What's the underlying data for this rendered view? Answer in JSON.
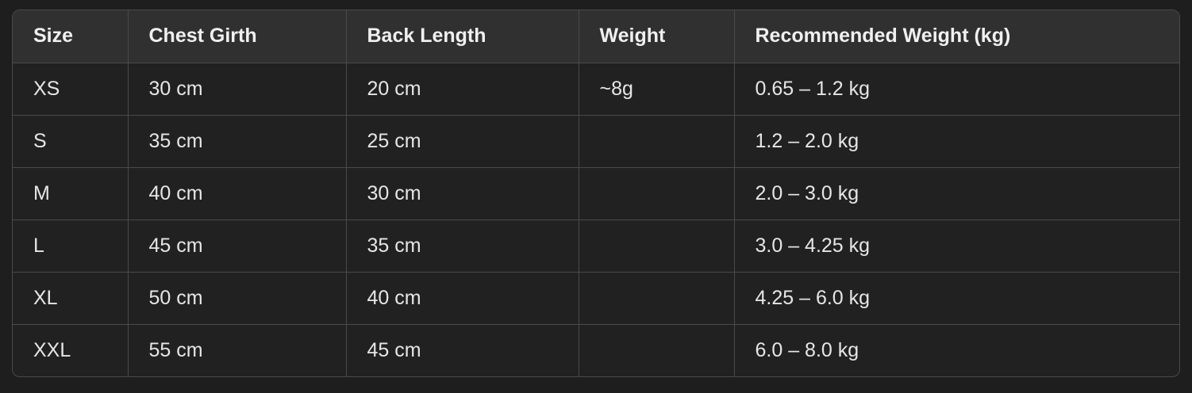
{
  "table": {
    "headers": [
      "Size",
      "Chest Girth",
      "Back Length",
      "Weight",
      "Recommended Weight (kg)"
    ],
    "rows": [
      [
        "XS",
        "30 cm",
        "20 cm",
        "~8g",
        "0.65 – 1.2 kg"
      ],
      [
        "S",
        "35 cm",
        "25 cm",
        "",
        "1.2 – 2.0 kg"
      ],
      [
        "M",
        "40 cm",
        "30 cm",
        "",
        "2.0 – 3.0 kg"
      ],
      [
        "L",
        "45 cm",
        "35 cm",
        "",
        "3.0 – 4.25 kg"
      ],
      [
        "XL",
        "50 cm",
        "40 cm",
        "",
        "4.25 – 6.0 kg"
      ],
      [
        "XXL",
        "55 cm",
        "45 cm",
        "",
        "6.0 – 8.0 kg"
      ]
    ]
  },
  "colors": {
    "background": "#1e1e1e",
    "table_body": "#212121",
    "header_row": "#303030",
    "border": "#4a4a4a",
    "text": "#ececec"
  }
}
